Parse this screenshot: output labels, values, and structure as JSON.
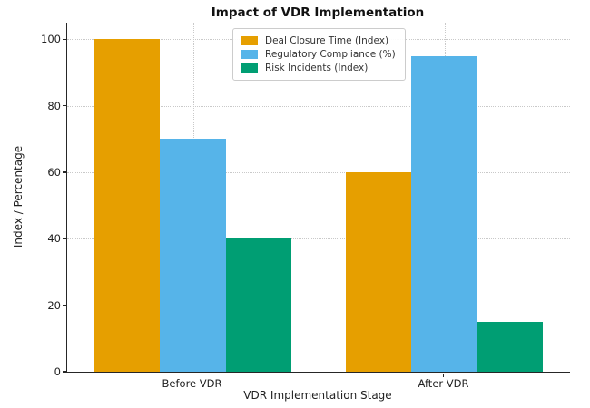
{
  "title": "Impact of VDR Implementation",
  "chart_data": {
    "type": "bar",
    "categories": [
      "Before VDR",
      "After VDR"
    ],
    "series": [
      {
        "name": "Deal Closure Time (Index)",
        "color": "#E69F00",
        "values": [
          100,
          60
        ]
      },
      {
        "name": "Regulatory Compliance (%)",
        "color": "#56B4E9",
        "values": [
          70,
          95
        ]
      },
      {
        "name": "Risk Incidents (Index)",
        "color": "#009E73",
        "values": [
          40,
          15
        ]
      }
    ],
    "xlabel": "VDR Implementation Stage",
    "ylabel": "Index / Percentage",
    "y_ticks": [
      0,
      20,
      40,
      60,
      80,
      100
    ],
    "ylim": [
      0,
      105
    ],
    "grid": "dotted",
    "legend_position": "upper center",
    "spine_color": "#262626",
    "grid_color": "#c9c9c9"
  }
}
